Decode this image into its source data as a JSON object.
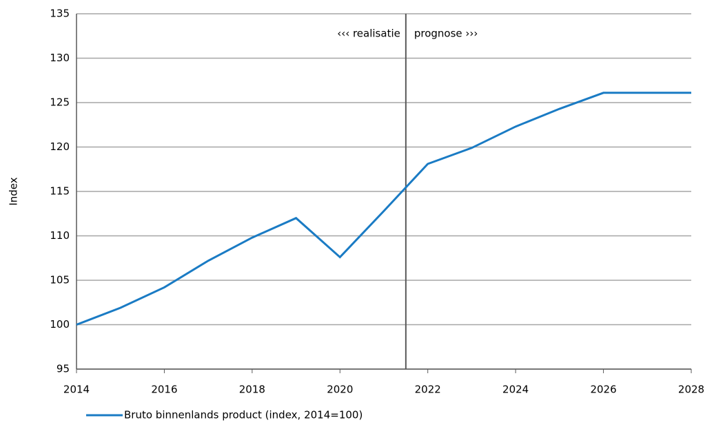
{
  "chart_data": {
    "type": "line",
    "y_label": "Index",
    "x": [
      2014,
      2015,
      2016,
      2017,
      2018,
      2019,
      2020,
      2021,
      2022,
      2023,
      2024,
      2025,
      2026,
      2027,
      2028
    ],
    "series": [
      {
        "name": "Bruto binnenlands product (index, 2014=100)",
        "color": "#1a7bc4",
        "values": [
          100,
          101.9,
          104.2,
          107.2,
          109.8,
          112.0,
          107.6,
          112.8,
          118.1,
          119.9,
          122.3,
          124.3,
          126.1,
          126.1,
          126.1
        ]
      }
    ],
    "xlim": [
      2014,
      2028
    ],
    "xticks": [
      2014,
      2016,
      2018,
      2020,
      2022,
      2024,
      2026,
      2028
    ],
    "ylim": [
      95,
      135
    ],
    "yticks": [
      95,
      100,
      105,
      110,
      115,
      120,
      125,
      130,
      135
    ],
    "grid": true,
    "divider_x": 2021.5,
    "annotations": [
      "‹‹‹ realisatie",
      "prognose ›››"
    ]
  }
}
